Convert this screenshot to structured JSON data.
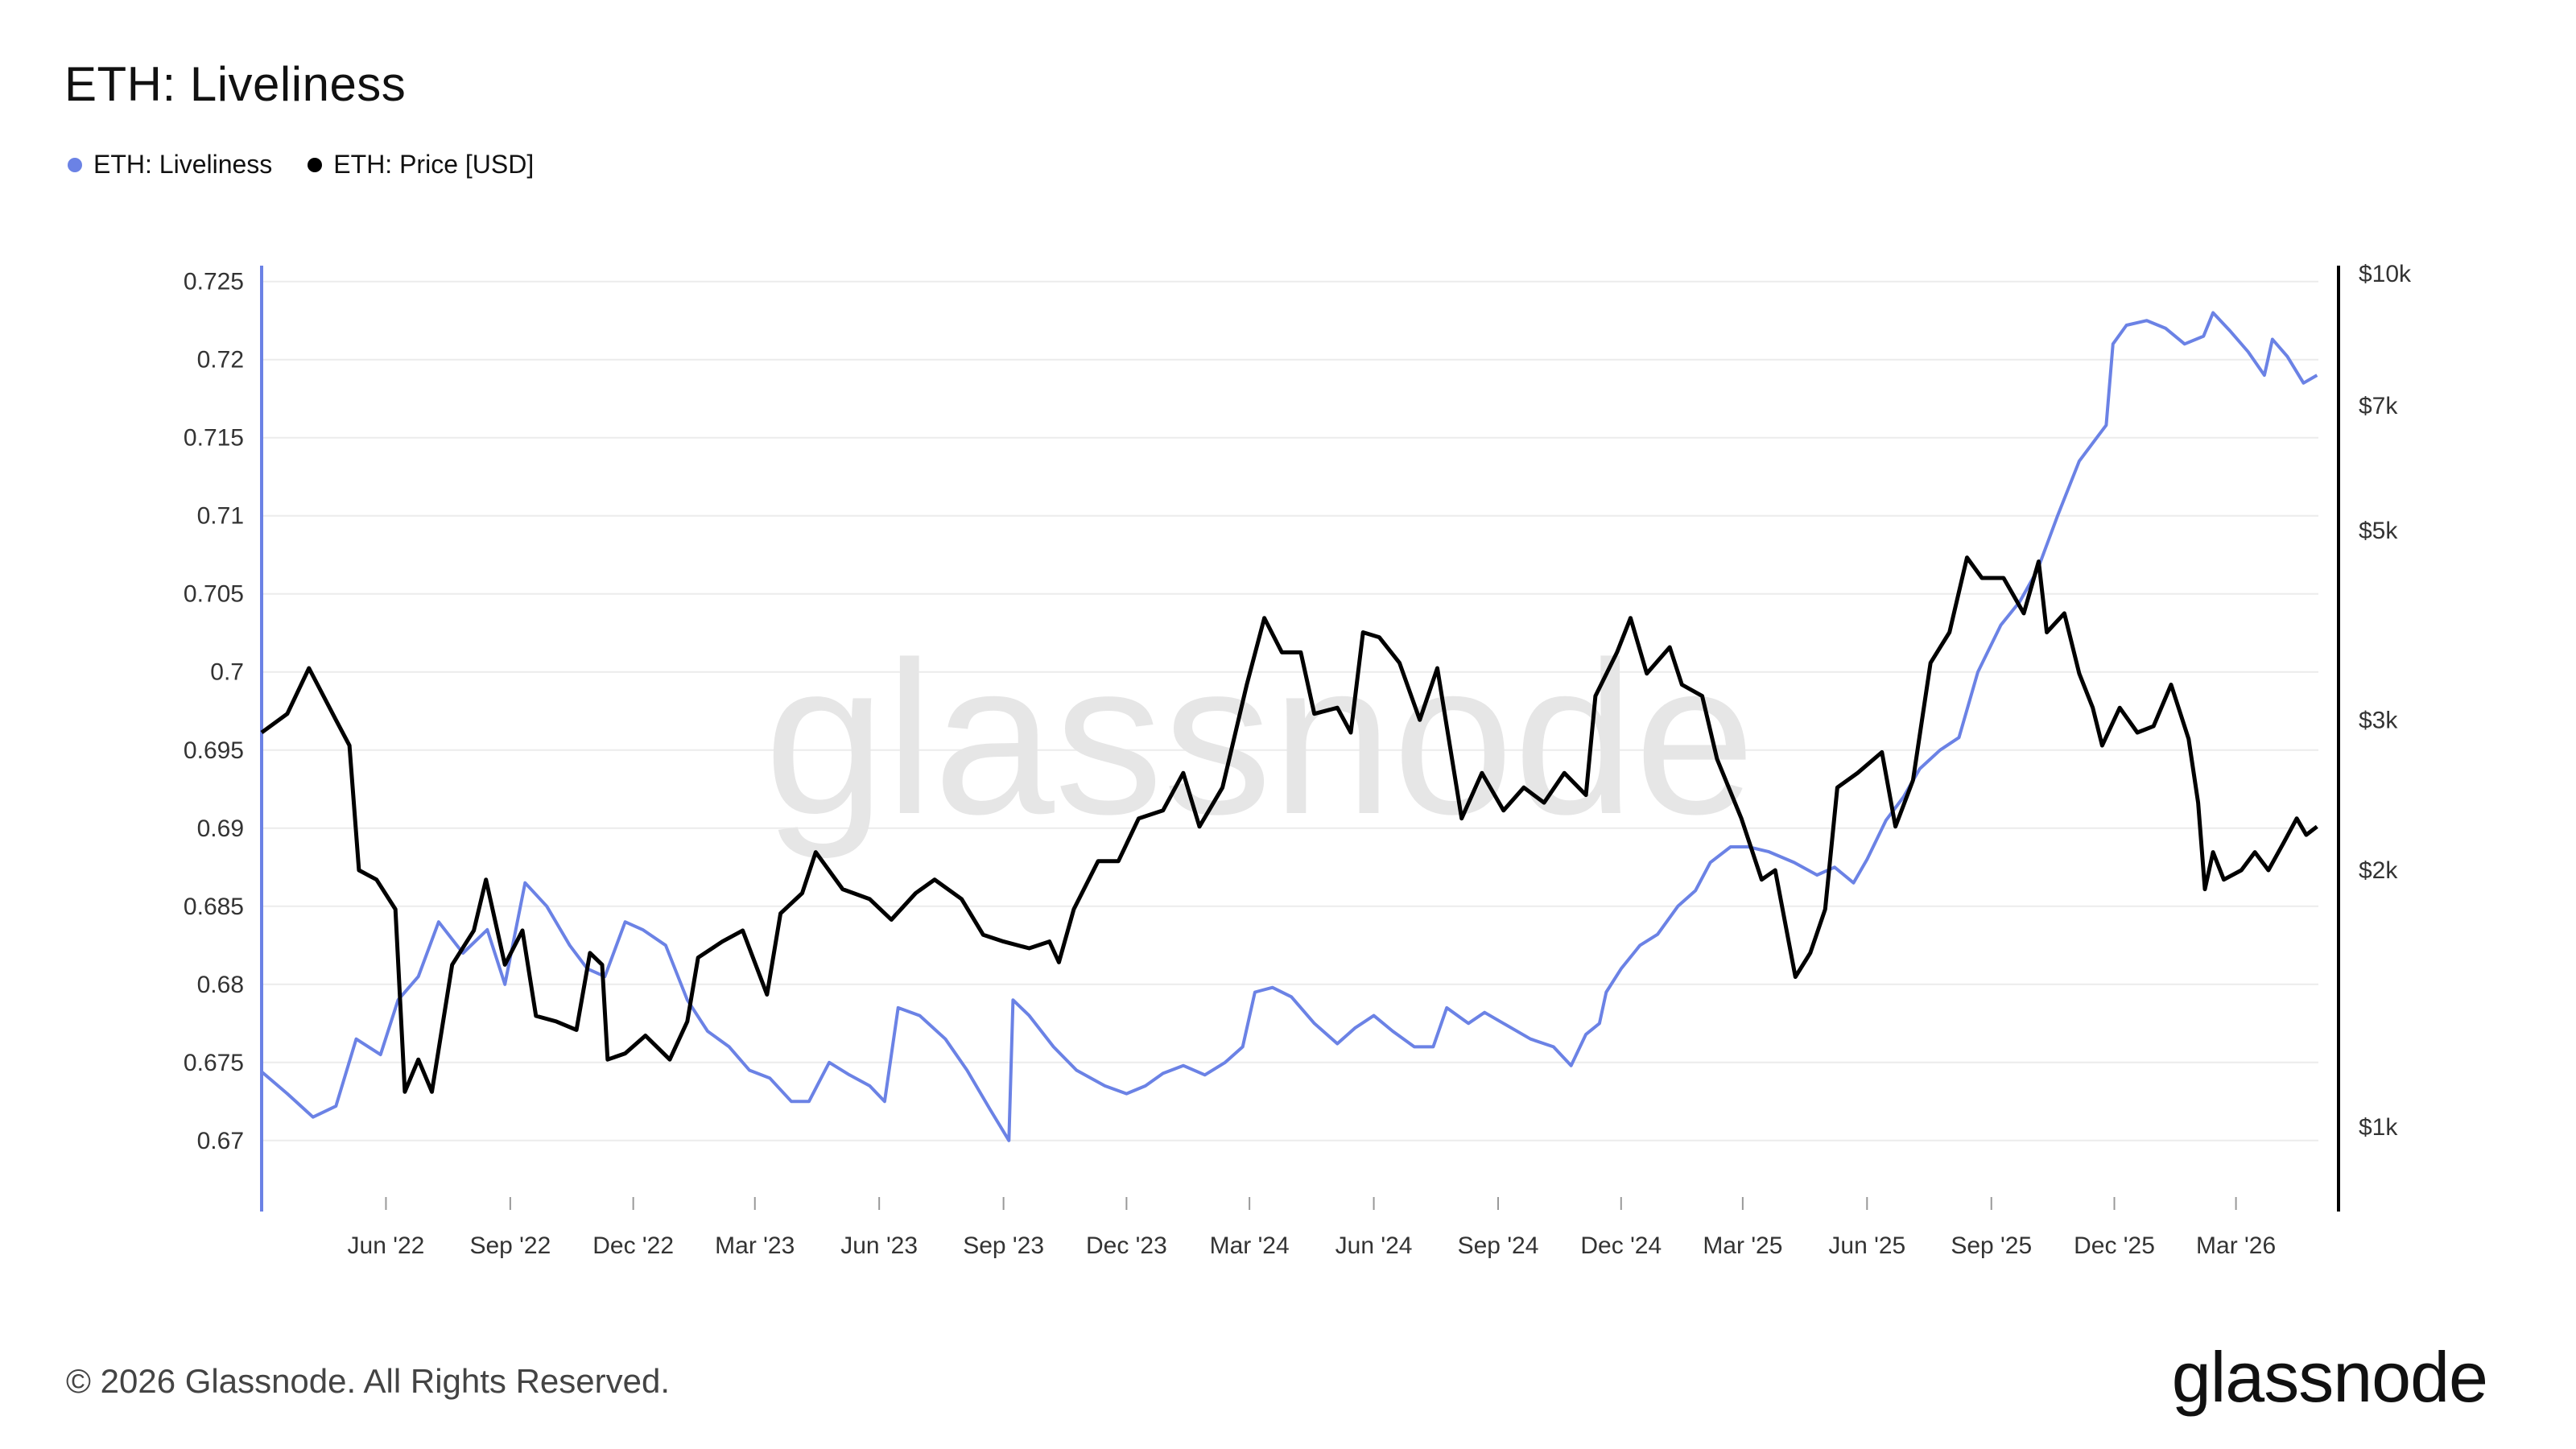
{
  "title": "ETH: Liveliness",
  "legend": [
    {
      "label": "ETH: Liveliness",
      "color": "#6b82e5"
    },
    {
      "label": "ETH: Price [USD]",
      "color": "#000000"
    }
  ],
  "watermark": "glassnode",
  "footer": "© 2026 Glassnode. All Rights Reserved.",
  "brand": "glassnode",
  "chart_data": {
    "type": "line",
    "x_ticks": [
      "Jun '22",
      "Sep '22",
      "Dec '22",
      "Mar '23",
      "Jun '23",
      "Sep '23",
      "Dec '23",
      "Mar '24",
      "Jun '24",
      "Sep '24",
      "Dec '24",
      "Mar '25",
      "Jun '25",
      "Sep '25",
      "Dec '25",
      "Mar '26"
    ],
    "x_range": [
      "2022-03-01",
      "2026-05-01"
    ],
    "y_left": {
      "ticks": [
        "0.725",
        "0.72",
        "0.715",
        "0.71",
        "0.705",
        "0.7",
        "0.695",
        "0.69",
        "0.685",
        "0.68",
        "0.675",
        "0.67"
      ],
      "range": [
        0.667,
        0.7255
      ],
      "color": "#6b82e5"
    },
    "y_right": {
      "ticks": [
        "$10k",
        "$7k",
        "$5k",
        "$3k",
        "$2k",
        "$1k"
      ],
      "tick_values": [
        10000,
        7000,
        5000,
        3000,
        2000,
        1000
      ],
      "scale": "log",
      "range": [
        850,
        10000
      ],
      "color": "#000000"
    },
    "grid": "horizontal",
    "legend_position": "top-left",
    "series": [
      {
        "name": "ETH: Liveliness",
        "axis": "left",
        "color": "#6b82e5",
        "points": [
          [
            "2022-03-01",
            0.6744
          ],
          [
            "2022-03-20",
            0.673
          ],
          [
            "2022-04-08",
            0.6715
          ],
          [
            "2022-04-25",
            0.6722
          ],
          [
            "2022-05-10",
            0.6765
          ],
          [
            "2022-05-28",
            0.6755
          ],
          [
            "2022-06-10",
            0.679
          ],
          [
            "2022-06-25",
            0.6805
          ],
          [
            "2022-07-10",
            0.684
          ],
          [
            "2022-07-28",
            0.682
          ],
          [
            "2022-08-15",
            0.6835
          ],
          [
            "2022-08-28",
            0.68
          ],
          [
            "2022-09-12",
            0.6865
          ],
          [
            "2022-09-28",
            0.685
          ],
          [
            "2022-10-15",
            0.6825
          ],
          [
            "2022-10-28",
            0.681
          ],
          [
            "2022-11-10",
            0.6805
          ],
          [
            "2022-11-25",
            0.684
          ],
          [
            "2022-12-08",
            0.6835
          ],
          [
            "2022-12-25",
            0.6825
          ],
          [
            "2023-01-10",
            0.679
          ],
          [
            "2023-01-25",
            0.677
          ],
          [
            "2023-02-10",
            0.676
          ],
          [
            "2023-02-25",
            0.6745
          ],
          [
            "2023-03-12",
            0.674
          ],
          [
            "2023-03-28",
            0.6725
          ],
          [
            "2023-04-10",
            0.6725
          ],
          [
            "2023-04-25",
            0.675
          ],
          [
            "2023-05-10",
            0.6742
          ],
          [
            "2023-05-25",
            0.6735
          ],
          [
            "2023-06-05",
            0.6725
          ],
          [
            "2023-06-15",
            0.6785
          ],
          [
            "2023-07-01",
            0.678
          ],
          [
            "2023-07-20",
            0.6765
          ],
          [
            "2023-08-05",
            0.6745
          ],
          [
            "2023-08-22",
            0.672
          ],
          [
            "2023-09-05",
            0.67
          ],
          [
            "2023-09-08",
            0.679
          ],
          [
            "2023-09-20",
            0.678
          ],
          [
            "2023-10-08",
            0.676
          ],
          [
            "2023-10-25",
            0.6745
          ],
          [
            "2023-11-15",
            0.6735
          ],
          [
            "2023-12-01",
            0.673
          ],
          [
            "2023-12-15",
            0.6735
          ],
          [
            "2023-12-28",
            0.6743
          ],
          [
            "2024-01-12",
            0.6748
          ],
          [
            "2024-01-28",
            0.6742
          ],
          [
            "2024-02-12",
            0.675
          ],
          [
            "2024-02-25",
            0.676
          ],
          [
            "2024-03-05",
            0.6795
          ],
          [
            "2024-03-18",
            0.6798
          ],
          [
            "2024-04-01",
            0.6792
          ],
          [
            "2024-04-18",
            0.6775
          ],
          [
            "2024-05-05",
            0.6762
          ],
          [
            "2024-05-18",
            0.6772
          ],
          [
            "2024-06-01",
            0.678
          ],
          [
            "2024-06-15",
            0.677
          ],
          [
            "2024-07-01",
            0.676
          ],
          [
            "2024-07-15",
            0.676
          ],
          [
            "2024-07-25",
            0.6785
          ],
          [
            "2024-08-10",
            0.6775
          ],
          [
            "2024-08-22",
            0.6782
          ],
          [
            "2024-09-05",
            0.6775
          ],
          [
            "2024-09-25",
            0.6765
          ],
          [
            "2024-10-12",
            0.676
          ],
          [
            "2024-10-25",
            0.6748
          ],
          [
            "2024-11-05",
            0.6768
          ],
          [
            "2024-11-15",
            0.6775
          ],
          [
            "2024-11-20",
            0.6795
          ],
          [
            "2024-12-01",
            0.681
          ],
          [
            "2024-12-15",
            0.6825
          ],
          [
            "2024-12-28",
            0.6832
          ],
          [
            "2025-01-12",
            0.685
          ],
          [
            "2025-01-25",
            0.686
          ],
          [
            "2025-02-05",
            0.6878
          ],
          [
            "2025-02-20",
            0.6888
          ],
          [
            "2025-03-05",
            0.6888
          ],
          [
            "2025-03-20",
            0.6885
          ],
          [
            "2025-04-08",
            0.6878
          ],
          [
            "2025-04-25",
            0.687
          ],
          [
            "2025-05-08",
            0.6875
          ],
          [
            "2025-05-22",
            0.6865
          ],
          [
            "2025-06-01",
            0.688
          ],
          [
            "2025-06-15",
            0.6905
          ],
          [
            "2025-06-28",
            0.692
          ],
          [
            "2025-07-10",
            0.6938
          ],
          [
            "2025-07-25",
            0.695
          ],
          [
            "2025-08-08",
            0.6958
          ],
          [
            "2025-08-22",
            0.7
          ],
          [
            "2025-09-08",
            0.703
          ],
          [
            "2025-09-22",
            0.7045
          ],
          [
            "2025-10-05",
            0.7065
          ],
          [
            "2025-10-20",
            0.71
          ],
          [
            "2025-11-05",
            0.7135
          ],
          [
            "2025-11-18",
            0.715
          ],
          [
            "2025-11-25",
            0.7158
          ],
          [
            "2025-11-30",
            0.721
          ],
          [
            "2025-12-10",
            0.7222
          ],
          [
            "2025-12-25",
            0.7225
          ],
          [
            "2026-01-08",
            0.722
          ],
          [
            "2026-01-22",
            0.721
          ],
          [
            "2026-02-05",
            0.7215
          ],
          [
            "2026-02-12",
            0.723
          ],
          [
            "2026-02-25",
            0.7218
          ],
          [
            "2026-03-10",
            0.7205
          ],
          [
            "2026-03-22",
            0.719
          ],
          [
            "2026-03-28",
            0.7213
          ],
          [
            "2026-04-08",
            0.7202
          ],
          [
            "2026-04-20",
            0.7185
          ],
          [
            "2026-04-30",
            0.719
          ]
        ]
      },
      {
        "name": "ETH: Price [USD]",
        "axis": "right",
        "color": "#000000",
        "points": [
          [
            "2022-03-01",
            2900
          ],
          [
            "2022-03-20",
            3050
          ],
          [
            "2022-04-05",
            3450
          ],
          [
            "2022-04-25",
            3000
          ],
          [
            "2022-05-05",
            2800
          ],
          [
            "2022-05-12",
            2000
          ],
          [
            "2022-05-25",
            1950
          ],
          [
            "2022-06-08",
            1800
          ],
          [
            "2022-06-15",
            1100
          ],
          [
            "2022-06-25",
            1200
          ],
          [
            "2022-07-05",
            1100
          ],
          [
            "2022-07-20",
            1550
          ],
          [
            "2022-08-05",
            1700
          ],
          [
            "2022-08-14",
            1950
          ],
          [
            "2022-08-28",
            1550
          ],
          [
            "2022-09-10",
            1700
          ],
          [
            "2022-09-20",
            1350
          ],
          [
            "2022-10-05",
            1330
          ],
          [
            "2022-10-20",
            1300
          ],
          [
            "2022-10-30",
            1600
          ],
          [
            "2022-11-08",
            1550
          ],
          [
            "2022-11-12",
            1200
          ],
          [
            "2022-11-25",
            1220
          ],
          [
            "2022-12-10",
            1280
          ],
          [
            "2022-12-28",
            1200
          ],
          [
            "2023-01-10",
            1330
          ],
          [
            "2023-01-18",
            1580
          ],
          [
            "2023-02-05",
            1650
          ],
          [
            "2023-02-20",
            1700
          ],
          [
            "2023-03-10",
            1430
          ],
          [
            "2023-03-20",
            1780
          ],
          [
            "2023-04-05",
            1880
          ],
          [
            "2023-04-15",
            2100
          ],
          [
            "2023-05-05",
            1900
          ],
          [
            "2023-05-25",
            1850
          ],
          [
            "2023-06-10",
            1750
          ],
          [
            "2023-06-28",
            1880
          ],
          [
            "2023-07-12",
            1950
          ],
          [
            "2023-08-01",
            1850
          ],
          [
            "2023-08-17",
            1680
          ],
          [
            "2023-09-01",
            1650
          ],
          [
            "2023-09-20",
            1620
          ],
          [
            "2023-10-05",
            1650
          ],
          [
            "2023-10-12",
            1560
          ],
          [
            "2023-10-23",
            1800
          ],
          [
            "2023-11-10",
            2050
          ],
          [
            "2023-11-25",
            2050
          ],
          [
            "2023-12-10",
            2300
          ],
          [
            "2023-12-28",
            2350
          ],
          [
            "2024-01-12",
            2600
          ],
          [
            "2024-01-24",
            2250
          ],
          [
            "2024-02-10",
            2500
          ],
          [
            "2024-02-28",
            3300
          ],
          [
            "2024-03-12",
            3950
          ],
          [
            "2024-03-25",
            3600
          ],
          [
            "2024-04-08",
            3600
          ],
          [
            "2024-04-18",
            3050
          ],
          [
            "2024-05-05",
            3100
          ],
          [
            "2024-05-15",
            2900
          ],
          [
            "2024-05-24",
            3800
          ],
          [
            "2024-06-05",
            3750
          ],
          [
            "2024-06-20",
            3500
          ],
          [
            "2024-07-05",
            3000
          ],
          [
            "2024-07-18",
            3450
          ],
          [
            "2024-08-05",
            2300
          ],
          [
            "2024-08-20",
            2600
          ],
          [
            "2024-09-05",
            2350
          ],
          [
            "2024-09-20",
            2500
          ],
          [
            "2024-10-05",
            2400
          ],
          [
            "2024-10-20",
            2600
          ],
          [
            "2024-11-05",
            2450
          ],
          [
            "2024-11-12",
            3200
          ],
          [
            "2024-11-28",
            3600
          ],
          [
            "2024-12-08",
            3950
          ],
          [
            "2024-12-20",
            3400
          ],
          [
            "2025-01-06",
            3650
          ],
          [
            "2025-01-15",
            3300
          ],
          [
            "2025-01-30",
            3200
          ],
          [
            "2025-02-10",
            2700
          ],
          [
            "2025-02-28",
            2300
          ],
          [
            "2025-03-15",
            1950
          ],
          [
            "2025-03-25",
            2000
          ],
          [
            "2025-04-09",
            1500
          ],
          [
            "2025-04-20",
            1600
          ],
          [
            "2025-05-01",
            1800
          ],
          [
            "2025-05-10",
            2500
          ],
          [
            "2025-05-25",
            2600
          ],
          [
            "2025-06-12",
            2750
          ],
          [
            "2025-06-22",
            2250
          ],
          [
            "2025-07-05",
            2550
          ],
          [
            "2025-07-18",
            3500
          ],
          [
            "2025-08-01",
            3800
          ],
          [
            "2025-08-14",
            4650
          ],
          [
            "2025-08-25",
            4400
          ],
          [
            "2025-09-10",
            4400
          ],
          [
            "2025-09-25",
            4000
          ],
          [
            "2025-10-06",
            4600
          ],
          [
            "2025-10-12",
            3800
          ],
          [
            "2025-10-25",
            4000
          ],
          [
            "2025-11-05",
            3400
          ],
          [
            "2025-11-15",
            3100
          ],
          [
            "2025-11-22",
            2800
          ],
          [
            "2025-12-05",
            3100
          ],
          [
            "2025-12-18",
            2900
          ],
          [
            "2025-12-30",
            2950
          ],
          [
            "2026-01-12",
            3300
          ],
          [
            "2026-01-25",
            2850
          ],
          [
            "2026-02-01",
            2400
          ],
          [
            "2026-02-06",
            1900
          ],
          [
            "2026-02-12",
            2100
          ],
          [
            "2026-02-20",
            1950
          ],
          [
            "2026-03-05",
            2000
          ],
          [
            "2026-03-15",
            2100
          ],
          [
            "2026-03-25",
            2000
          ],
          [
            "2026-04-05",
            2150
          ],
          [
            "2026-04-15",
            2300
          ],
          [
            "2026-04-22",
            2200
          ],
          [
            "2026-04-30",
            2250
          ]
        ]
      }
    ]
  }
}
